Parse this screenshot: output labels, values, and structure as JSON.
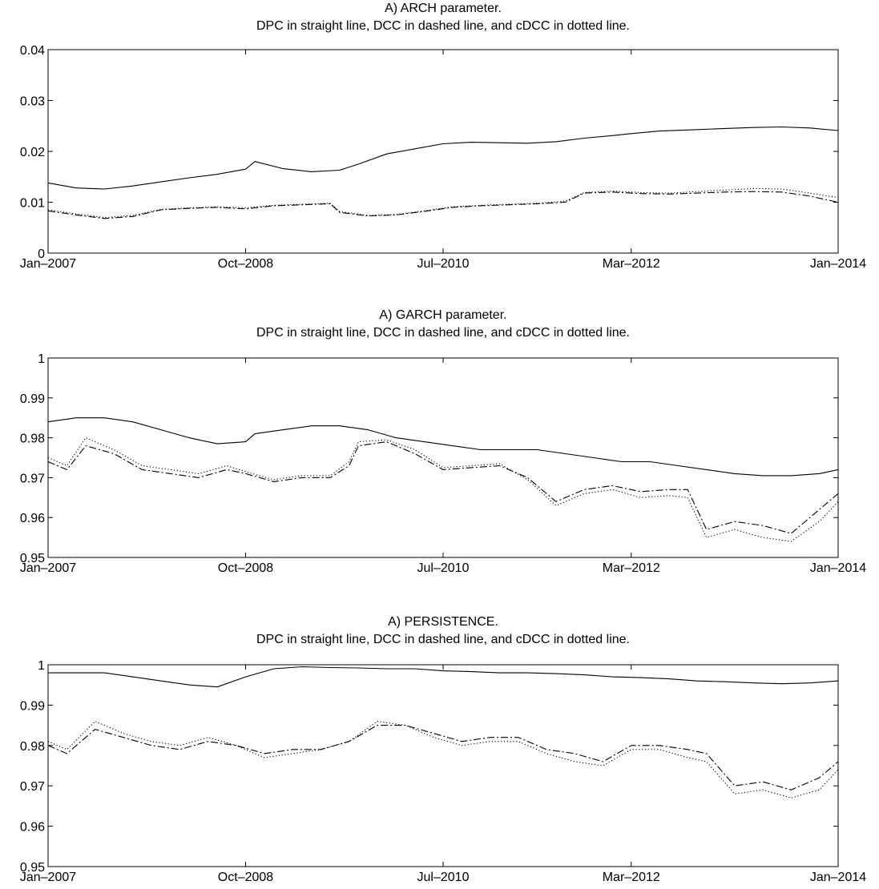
{
  "chart_data": [
    {
      "type": "line",
      "title": "A) ARCH parameter.",
      "subtitle": "DPC in straight line, DCC in dashed line, and cDCC in dotted line.",
      "xlabel": "",
      "ylabel": "",
      "grid": false,
      "x_range": [
        "2007-01",
        "2014-01"
      ],
      "x_ticks": [
        "Jan–2007",
        "Oct–2008",
        "Jul–2010",
        "Mar–2012",
        "Jan–2014"
      ],
      "y_range": [
        0,
        0.04
      ],
      "y_ticks": [
        "0",
        "0.01",
        "0.02",
        "0.03",
        "0.04"
      ],
      "series": [
        {
          "name": "DPC",
          "style": "solid",
          "x": [
            "2007-01",
            "2007-04",
            "2007-07",
            "2007-10",
            "2008-01",
            "2008-04",
            "2008-07",
            "2008-10",
            "2008-11",
            "2009-02",
            "2009-05",
            "2009-08",
            "2009-10",
            "2010-01",
            "2010-04",
            "2010-07",
            "2010-10",
            "2011-01",
            "2011-04",
            "2011-07",
            "2011-10",
            "2012-01",
            "2012-03",
            "2012-06",
            "2012-09",
            "2013-01",
            "2013-04",
            "2013-07",
            "2013-10",
            "2014-01"
          ],
          "y": [
            0.0138,
            0.0128,
            0.0126,
            0.0132,
            0.014,
            0.0148,
            0.0155,
            0.0165,
            0.018,
            0.0166,
            0.016,
            0.0163,
            0.0175,
            0.0195,
            0.0205,
            0.0215,
            0.0218,
            0.0217,
            0.0216,
            0.0219,
            0.0226,
            0.0231,
            0.0235,
            0.024,
            0.0242,
            0.0245,
            0.0247,
            0.0248,
            0.0246,
            0.0241
          ]
        },
        {
          "name": "DCC",
          "style": "dashed",
          "x": [
            "2007-01",
            "2007-04",
            "2007-07",
            "2007-10",
            "2008-01",
            "2008-04",
            "2008-07",
            "2008-10",
            "2009-01",
            "2009-04",
            "2009-07",
            "2009-08",
            "2009-11",
            "2010-02",
            "2010-05",
            "2010-08",
            "2010-11",
            "2011-02",
            "2011-05",
            "2011-08",
            "2011-10",
            "2012-01",
            "2012-04",
            "2012-07",
            "2012-10",
            "2013-01",
            "2013-04",
            "2013-07",
            "2013-10",
            "2014-01"
          ],
          "y": [
            0.0083,
            0.0075,
            0.0068,
            0.0072,
            0.0085,
            0.0088,
            0.009,
            0.0087,
            0.0093,
            0.0095,
            0.0097,
            0.008,
            0.0073,
            0.0075,
            0.0082,
            0.009,
            0.0093,
            0.0095,
            0.0097,
            0.01,
            0.0118,
            0.012,
            0.0117,
            0.0116,
            0.0118,
            0.012,
            0.0121,
            0.012,
            0.0112,
            0.01
          ]
        },
        {
          "name": "cDCC",
          "style": "dotted",
          "x": [
            "2007-01",
            "2007-04",
            "2007-07",
            "2007-10",
            "2008-01",
            "2008-04",
            "2008-07",
            "2008-10",
            "2009-01",
            "2009-04",
            "2009-07",
            "2009-08",
            "2009-11",
            "2010-02",
            "2010-05",
            "2010-08",
            "2010-11",
            "2011-02",
            "2011-05",
            "2011-08",
            "2011-10",
            "2012-01",
            "2012-04",
            "2012-07",
            "2012-10",
            "2013-01",
            "2013-04",
            "2013-07",
            "2013-10",
            "2014-01"
          ],
          "y": [
            0.0085,
            0.0077,
            0.007,
            0.0074,
            0.0086,
            0.0089,
            0.0091,
            0.0089,
            0.0094,
            0.0096,
            0.0098,
            0.0082,
            0.0074,
            0.0076,
            0.0083,
            0.0091,
            0.0094,
            0.0096,
            0.0098,
            0.0102,
            0.0119,
            0.0122,
            0.0119,
            0.0118,
            0.0121,
            0.0124,
            0.0127,
            0.0126,
            0.0118,
            0.0109
          ]
        }
      ]
    },
    {
      "type": "line",
      "title": "A) GARCH parameter.",
      "subtitle": "DPC in straight line, DCC in dashed line, and cDCC in dotted line.",
      "xlabel": "",
      "ylabel": "",
      "grid": false,
      "x_range": [
        "2007-01",
        "2014-01"
      ],
      "x_ticks": [
        "Jan–2007",
        "Oct–2008",
        "Jul–2010",
        "Mar–2012",
        "Jan–2014"
      ],
      "y_range": [
        0.95,
        1
      ],
      "y_ticks": [
        "0.95",
        "0.96",
        "0.97",
        "0.98",
        "0.99",
        "1"
      ],
      "series": [
        {
          "name": "DPC",
          "style": "solid",
          "x": [
            "2007-01",
            "2007-04",
            "2007-07",
            "2007-10",
            "2008-01",
            "2008-04",
            "2008-07",
            "2008-10",
            "2008-11",
            "2009-02",
            "2009-05",
            "2009-08",
            "2009-11",
            "2010-02",
            "2010-05",
            "2010-08",
            "2010-11",
            "2011-02",
            "2011-05",
            "2011-08",
            "2011-11",
            "2012-02",
            "2012-05",
            "2012-08",
            "2012-11",
            "2013-02",
            "2013-05",
            "2013-08",
            "2013-11",
            "2014-01"
          ],
          "y": [
            0.984,
            0.985,
            0.985,
            0.984,
            0.982,
            0.98,
            0.9785,
            0.979,
            0.981,
            0.982,
            0.983,
            0.983,
            0.982,
            0.98,
            0.979,
            0.978,
            0.977,
            0.977,
            0.977,
            0.976,
            0.975,
            0.974,
            0.974,
            0.973,
            0.972,
            0.971,
            0.9705,
            0.9705,
            0.971,
            0.972
          ]
        },
        {
          "name": "DCC",
          "style": "dashed",
          "x": [
            "2007-01",
            "2007-03",
            "2007-05",
            "2007-08",
            "2007-11",
            "2008-02",
            "2008-05",
            "2008-08",
            "2008-10",
            "2009-01",
            "2009-04",
            "2009-07",
            "2009-09",
            "2009-10",
            "2010-01",
            "2010-04",
            "2010-07",
            "2010-10",
            "2011-01",
            "2011-04",
            "2011-07",
            "2011-10",
            "2012-01",
            "2012-04",
            "2012-07",
            "2012-09",
            "2012-11",
            "2013-02",
            "2013-05",
            "2013-08",
            "2013-11",
            "2014-01"
          ],
          "y": [
            0.974,
            0.972,
            0.978,
            0.976,
            0.972,
            0.971,
            0.97,
            0.972,
            0.971,
            0.969,
            0.97,
            0.97,
            0.973,
            0.978,
            0.979,
            0.976,
            0.972,
            0.9725,
            0.973,
            0.97,
            0.964,
            0.967,
            0.968,
            0.9665,
            0.967,
            0.967,
            0.957,
            0.959,
            0.958,
            0.956,
            0.962,
            0.966
          ]
        },
        {
          "name": "cDCC",
          "style": "dotted",
          "x": [
            "2007-01",
            "2007-03",
            "2007-05",
            "2007-08",
            "2007-11",
            "2008-02",
            "2008-05",
            "2008-08",
            "2008-10",
            "2009-01",
            "2009-04",
            "2009-07",
            "2009-09",
            "2009-10",
            "2010-01",
            "2010-04",
            "2010-07",
            "2010-10",
            "2011-01",
            "2011-04",
            "2011-07",
            "2011-10",
            "2012-01",
            "2012-04",
            "2012-07",
            "2012-09",
            "2012-11",
            "2013-02",
            "2013-05",
            "2013-08",
            "2013-11",
            "2014-01"
          ],
          "y": [
            0.975,
            0.973,
            0.98,
            0.977,
            0.973,
            0.972,
            0.971,
            0.973,
            0.9715,
            0.9695,
            0.9705,
            0.9705,
            0.974,
            0.979,
            0.9795,
            0.977,
            0.9725,
            0.973,
            0.9735,
            0.9695,
            0.963,
            0.966,
            0.967,
            0.965,
            0.9655,
            0.965,
            0.955,
            0.957,
            0.955,
            0.954,
            0.959,
            0.964
          ]
        }
      ]
    },
    {
      "type": "line",
      "title": "A) PERSISTENCE.",
      "subtitle": "DPC in straight line, DCC in dashed line, and cDCC in dotted line.",
      "xlabel": "",
      "ylabel": "",
      "grid": false,
      "x_range": [
        "2007-01",
        "2014-01"
      ],
      "x_ticks": [
        "Jan–2007",
        "Oct–2008",
        "Jul–2010",
        "Mar–2012",
        "Jan–2014"
      ],
      "y_range": [
        0.95,
        1
      ],
      "y_ticks": [
        "0.95",
        "0.96",
        "0.97",
        "0.98",
        "0.99",
        "1"
      ],
      "series": [
        {
          "name": "DPC",
          "style": "solid",
          "x": [
            "2007-01",
            "2007-04",
            "2007-07",
            "2007-10",
            "2008-01",
            "2008-04",
            "2008-07",
            "2008-10",
            "2009-01",
            "2009-04",
            "2009-07",
            "2009-10",
            "2010-01",
            "2010-04",
            "2010-07",
            "2010-10",
            "2011-01",
            "2011-04",
            "2011-07",
            "2011-10",
            "2012-01",
            "2012-04",
            "2012-07",
            "2012-10",
            "2013-01",
            "2013-04",
            "2013-07",
            "2013-10",
            "2014-01"
          ],
          "y": [
            0.998,
            0.998,
            0.998,
            0.997,
            0.996,
            0.995,
            0.9945,
            0.997,
            0.999,
            0.9995,
            0.9993,
            0.9992,
            0.999,
            0.999,
            0.9985,
            0.9983,
            0.998,
            0.998,
            0.9978,
            0.9975,
            0.997,
            0.9968,
            0.9965,
            0.996,
            0.9958,
            0.9955,
            0.9953,
            0.9955,
            0.996
          ]
        },
        {
          "name": "DCC",
          "style": "dashed",
          "x": [
            "2007-01",
            "2007-03",
            "2007-06",
            "2007-09",
            "2007-12",
            "2008-03",
            "2008-06",
            "2008-09",
            "2008-12",
            "2009-03",
            "2009-06",
            "2009-09",
            "2009-12",
            "2010-03",
            "2010-06",
            "2010-09",
            "2010-12",
            "2011-03",
            "2011-06",
            "2011-09",
            "2011-12",
            "2012-03",
            "2012-06",
            "2012-09",
            "2012-11",
            "2013-02",
            "2013-05",
            "2013-08",
            "2013-11",
            "2014-01"
          ],
          "y": [
            0.98,
            0.978,
            0.984,
            0.982,
            0.98,
            0.979,
            0.981,
            0.98,
            0.978,
            0.979,
            0.979,
            0.981,
            0.985,
            0.985,
            0.983,
            0.981,
            0.982,
            0.982,
            0.979,
            0.978,
            0.976,
            0.98,
            0.98,
            0.979,
            0.978,
            0.97,
            0.971,
            0.969,
            0.972,
            0.976
          ]
        },
        {
          "name": "cDCC",
          "style": "dotted",
          "x": [
            "2007-01",
            "2007-03",
            "2007-06",
            "2007-09",
            "2007-12",
            "2008-03",
            "2008-06",
            "2008-09",
            "2008-12",
            "2009-03",
            "2009-06",
            "2009-09",
            "2009-12",
            "2010-03",
            "2010-06",
            "2010-09",
            "2010-12",
            "2011-03",
            "2011-06",
            "2011-09",
            "2011-12",
            "2012-03",
            "2012-06",
            "2012-09",
            "2012-11",
            "2013-02",
            "2013-05",
            "2013-08",
            "2013-11",
            "2014-01"
          ],
          "y": [
            0.981,
            0.979,
            0.986,
            0.983,
            0.981,
            0.98,
            0.982,
            0.98,
            0.977,
            0.978,
            0.979,
            0.981,
            0.986,
            0.985,
            0.982,
            0.98,
            0.981,
            0.981,
            0.978,
            0.976,
            0.975,
            0.979,
            0.979,
            0.977,
            0.976,
            0.968,
            0.969,
            0.967,
            0.969,
            0.974
          ]
        }
      ]
    }
  ]
}
